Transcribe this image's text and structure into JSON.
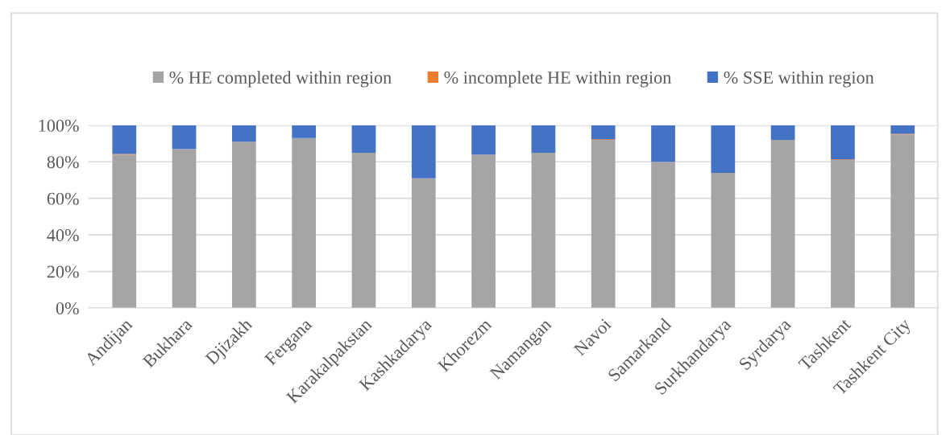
{
  "chart_data": {
    "type": "bar",
    "stacked": true,
    "categories": [
      "Andijan",
      "Bukhara",
      "Djizakh",
      "Fergana",
      "Karakalpakstan",
      "Kashkadarya",
      "Khorezm",
      "Namangan",
      "Navoi",
      "Samarkand",
      "Surkhandarya",
      "Syrdarya",
      "Tashkent",
      "Tashkent City"
    ],
    "series": [
      {
        "name": "% HE completed within region",
        "color": "#a5a5a5",
        "values": [
          84,
          87,
          91,
          93,
          85,
          71,
          84,
          85,
          92,
          80,
          74,
          92,
          81,
          95
        ]
      },
      {
        "name": "% incomplete HE within region",
        "color": "#ed7d31",
        "values": [
          0.3,
          0,
          null,
          0,
          0,
          0,
          0,
          0,
          0.3,
          null,
          0,
          0,
          0.3,
          0.3
        ]
      },
      {
        "name": "% SSE within region",
        "color": "#4472c4",
        "values": [
          15.7,
          13,
          9,
          7,
          15,
          29,
          16,
          15,
          7.7,
          20,
          26,
          8,
          18.7,
          4.7
        ]
      }
    ],
    "ylim": [
      0,
      100
    ],
    "yticks": [
      {
        "value": 0,
        "label": "0%"
      },
      {
        "value": 20,
        "label": "20%"
      },
      {
        "value": 40,
        "label": "40%"
      },
      {
        "value": 60,
        "label": "60%"
      },
      {
        "value": 80,
        "label": "80%"
      },
      {
        "value": 100,
        "label": "100%"
      }
    ],
    "grid": "y",
    "legend": "top"
  }
}
